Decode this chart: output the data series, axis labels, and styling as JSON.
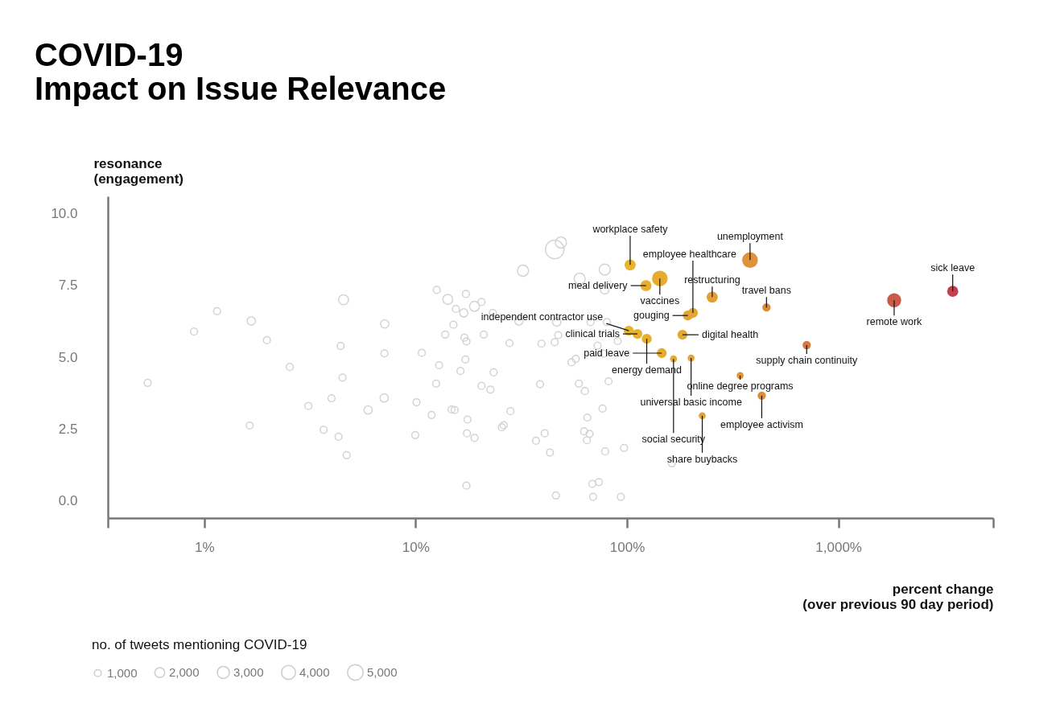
{
  "chart_data": {
    "type": "bubble",
    "title": "COVID-19\nImpact on Issue Relevance",
    "ylabel": "resonance\n(engagement)",
    "xlabel": "percent change\n(over previous 90 day period)",
    "legend_title": "no. of tweets mentioning COVID-19",
    "size_legend": [
      {
        "value": 1000,
        "label": "1,000"
      },
      {
        "value": 2000,
        "label": "2,000"
      },
      {
        "value": 3000,
        "label": "3,000"
      },
      {
        "value": 4000,
        "label": "4,000"
      },
      {
        "value": 5000,
        "label": "5,000"
      }
    ],
    "log": "x",
    "grid": false,
    "xlim": [
      0.35,
      5400
    ],
    "ylim": [
      -0.6,
      10.6
    ],
    "xticks": [
      {
        "value": 0.35,
        "label": null
      },
      {
        "value": 1,
        "label": "1%"
      },
      {
        "value": 10,
        "label": "10%"
      },
      {
        "value": 100,
        "label": "100%"
      },
      {
        "value": 1000,
        "label": "1,000%"
      },
      {
        "value": 5400,
        "label": null
      }
    ],
    "yticks": [
      {
        "value": 0,
        "label": "0.0"
      },
      {
        "value": 2.5,
        "label": "2.5"
      },
      {
        "value": 5,
        "label": "5.0"
      },
      {
        "value": 7.5,
        "label": "7.5"
      },
      {
        "value": 10,
        "label": "10.0"
      }
    ],
    "series": [
      {
        "color": "#d3d3d3",
        "x": [
          1.15,
          0.895,
          1.67,
          1.98,
          0.54,
          2.54,
          4.56,
          7.14,
          4.42,
          7.12,
          10.7,
          4.51,
          4.0,
          3.11,
          5.96,
          7.1,
          10.1,
          1.64,
          3.67,
          4.32,
          4.72,
          9.96,
          45.5,
          48.7,
          32.2,
          78.5,
          59.7,
          78.5,
          12.6,
          17.3,
          14.2,
          20.5,
          19.0,
          15.5,
          16.9,
          23.2,
          30.8,
          46.5,
          67.2,
          80.4,
          15.1,
          13.8,
          17.0,
          17.4,
          21.0,
          27.8,
          39.4,
          45.5,
          47.3,
          72.6,
          90.3,
          17.2,
          12.9,
          16.3,
          23.4,
          54.7,
          57.2,
          77.4,
          12.5,
          20.5,
          22.6,
          38.8,
          59.2,
          63.2,
          81.8,
          11.9,
          14.8,
          15.3,
          17.6,
          28.1,
          25.6,
          26.1,
          17.5,
          19.0,
          37.1,
          40.8,
          64.9,
          76.6,
          62.7,
          66.5,
          64.6,
          43.2,
          78.8,
          96.8,
          17.4,
          68.5,
          73.6,
          46.1,
          69.1,
          93.5,
          163
        ],
        "values": [
          6.6,
          5.89,
          6.26,
          5.59,
          4.11,
          4.66,
          7.0,
          6.16,
          5.39,
          5.13,
          5.15,
          4.29,
          3.57,
          3.3,
          3.16,
          3.58,
          3.43,
          2.62,
          2.47,
          2.23,
          1.59,
          2.29,
          8.75,
          8.99,
          8.01,
          8.05,
          7.73,
          7.34,
          7.34,
          7.2,
          7.01,
          6.92,
          6.77,
          6.68,
          6.54,
          6.54,
          6.26,
          6.22,
          6.22,
          6.22,
          6.13,
          5.79,
          5.68,
          5.55,
          5.79,
          5.49,
          5.47,
          5.52,
          5.77,
          5.4,
          5.56,
          4.92,
          4.72,
          4.52,
          4.47,
          4.82,
          4.94,
          5.12,
          4.08,
          4.0,
          3.87,
          4.06,
          4.08,
          3.82,
          4.16,
          2.99,
          3.18,
          3.16,
          2.83,
          3.12,
          2.56,
          2.63,
          2.35,
          2.19,
          2.09,
          2.35,
          2.9,
          3.21,
          2.42,
          2.33,
          2.11,
          1.68,
          1.72,
          1.84,
          0.53,
          0.59,
          0.65,
          0.19,
          0.14,
          0.14,
          1.31
        ],
        "sizes": [
          1000,
          1000,
          1400,
          1000,
          1000,
          1000,
          2000,
          1400,
          1000,
          1000,
          1000,
          1000,
          1000,
          1000,
          1400,
          1400,
          1000,
          1000,
          1000,
          1000,
          1000,
          1000,
          7000,
          2500,
          2500,
          2500,
          2500,
          1400,
          1000,
          1000,
          2000,
          1000,
          2000,
          1000,
          1400,
          1000,
          1400,
          1400,
          1000,
          1000,
          1000,
          1000,
          1000,
          1000,
          1000,
          1000,
          1000,
          1000,
          1000,
          1000,
          1000,
          1000,
          1000,
          1000,
          1000,
          1000,
          1000,
          1000,
          1000,
          1000,
          1000,
          1000,
          1000,
          1000,
          1000,
          1000,
          1000,
          1000,
          1000,
          1000,
          1000,
          1000,
          1000,
          1000,
          1000,
          1000,
          1000,
          1000,
          1000,
          1000,
          1000,
          1000,
          1000,
          1000,
          1000,
          1000,
          1000,
          1000,
          1000,
          1000,
          1000
        ]
      },
      {
        "x": [
          102,
          103.5,
          112,
          123,
          124,
          143,
          146,
          166,
          183,
          194,
          201,
          205,
          227,
          253,
          343,
          382,
          434,
          457,
          708,
          1836,
          3474
        ],
        "values": [
          5.92,
          8.21,
          5.81,
          7.49,
          5.64,
          7.74,
          5.14,
          4.94,
          5.78,
          6.45,
          4.97,
          6.54,
          2.96,
          7.09,
          4.36,
          8.38,
          3.66,
          6.73,
          5.42,
          6.98,
          7.29
        ],
        "sizes": [
          2000,
          2500,
          2000,
          2500,
          2000,
          5000,
          2000,
          1000,
          2000,
          2000,
          1000,
          2000,
          1000,
          2500,
          1000,
          5000,
          1400,
          1400,
          1400,
          4000,
          2500
        ],
        "colors": [
          "#e8b42e",
          "#e8b32e",
          "#e7b12f",
          "#e6af2f",
          "#e6af2f",
          "#e5ac30",
          "#e5ac30",
          "#e5aa31",
          "#e4a832",
          "#e4a632",
          "#e4a532",
          "#e4a532",
          "#e3a333",
          "#e2a034",
          "#df9538",
          "#de9239",
          "#dd8e3a",
          "#dc8c3b",
          "#d8773f",
          "#cd5a48",
          "#c3414f"
        ]
      }
    ],
    "annotations": [
      {
        "text": "independent contractor use",
        "x": 102,
        "y": 5.92
      },
      {
        "text": "workplace safety",
        "x": 103.5,
        "y": 8.21
      },
      {
        "text": "clinical trials",
        "x": 112,
        "y": 5.81
      },
      {
        "text": "meal delivery",
        "x": 123,
        "y": 7.49
      },
      {
        "text": "energy demand",
        "x": 124,
        "y": 5.64
      },
      {
        "text": "vaccines",
        "x": 143,
        "y": 7.74
      },
      {
        "text": "paid leave",
        "x": 146,
        "y": 5.14
      },
      {
        "text": "social security",
        "x": 166,
        "y": 4.94
      },
      {
        "text": "digital health",
        "x": 183,
        "y": 5.78
      },
      {
        "text": "gouging",
        "x": 194,
        "y": 6.45
      },
      {
        "text": "universal basic income",
        "x": 201,
        "y": 4.97
      },
      {
        "text": "employee healthcare",
        "x": 205,
        "y": 6.54
      },
      {
        "text": "share buybacks",
        "x": 227,
        "y": 2.96
      },
      {
        "text": "restructuring",
        "x": 253,
        "y": 7.09
      },
      {
        "text": "online degree programs",
        "x": 343,
        "y": 4.36
      },
      {
        "text": "unemployment",
        "x": 382,
        "y": 8.38
      },
      {
        "text": "employee activism",
        "x": 434,
        "y": 3.66
      },
      {
        "text": "travel bans",
        "x": 457,
        "y": 6.73
      },
      {
        "text": "supply chain continuity",
        "x": 708,
        "y": 5.42
      },
      {
        "text": "remote work",
        "x": 1836,
        "y": 6.98
      },
      {
        "text": "sick leave",
        "x": 3474,
        "y": 7.29
      }
    ]
  }
}
